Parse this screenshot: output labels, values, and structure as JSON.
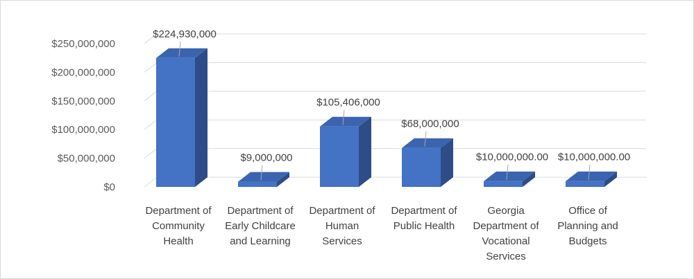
{
  "chart_data": {
    "type": "bar",
    "style": "3d-column",
    "title": "",
    "xlabel": "",
    "ylabel": "",
    "ylim": [
      0,
      250000000
    ],
    "yticks": [
      0,
      50000000,
      100000000,
      150000000,
      200000000,
      250000000
    ],
    "ytick_labels": [
      "$0",
      "$50,000,000",
      "$100,000,000",
      "$150,000,000",
      "$200,000,000",
      "$250,000,000"
    ],
    "grid": true,
    "legend": "none",
    "categories": [
      [
        "Department of",
        "Community",
        "Health"
      ],
      [
        "Department of",
        "Early Childcare",
        "and Learning"
      ],
      [
        "Department of",
        "Human",
        "Services"
      ],
      [
        "Department of",
        "Public Health"
      ],
      [
        "Georgia",
        "Department of",
        "Vocational",
        "Services"
      ],
      [
        "Office of",
        "Planning and",
        "Budgets"
      ]
    ],
    "values": [
      224930000,
      9000000,
      105406000,
      68000000,
      10000000,
      10000000
    ],
    "data_labels": [
      "$224,930,000",
      "$9,000,000",
      "$105,406,000",
      "$68,000,000",
      "$10,000,000.00",
      "$10,000,000.00"
    ],
    "colors": {
      "bar_front": "#4472c4",
      "bar_top": "#3b64b0",
      "bar_side": "#2e4d88",
      "grid": "#d9d9d9",
      "leader": "#a6a6a6"
    }
  }
}
